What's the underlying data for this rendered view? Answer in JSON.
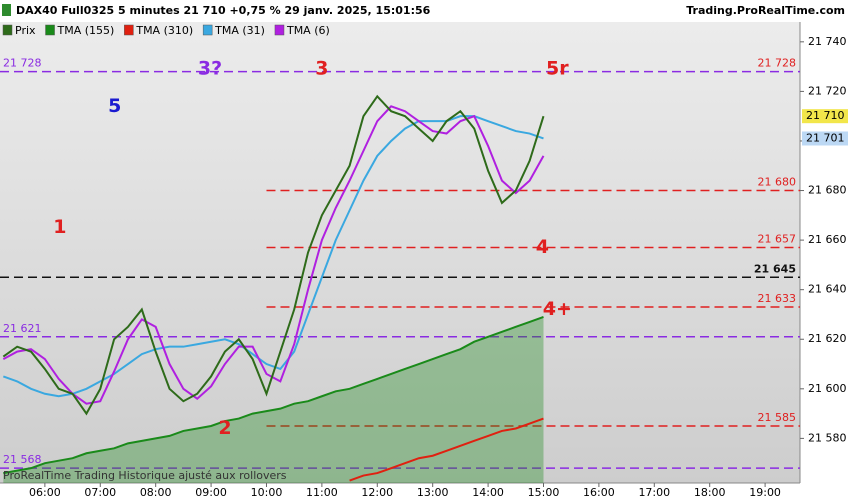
{
  "chart_data": {
    "type": "line",
    "title": "DAX40 Full0325 5 minutes 21 710 +0,75 % 29 janv. 2025, 15:01:56",
    "source": "Trading.ProRealTime.com",
    "footer": "ProRealTime Trading  Historique ajusté aux rollovers",
    "xlim": [
      5.19,
      19.63
    ],
    "ylim": [
      21562,
      21748
    ],
    "xticks": [
      {
        "value": 6,
        "label": "06:00"
      },
      {
        "value": 7,
        "label": "07:00"
      },
      {
        "value": 8,
        "label": "08:00"
      },
      {
        "value": 9,
        "label": "09:00"
      },
      {
        "value": 10,
        "label": "10:00"
      },
      {
        "value": 11,
        "label": "11:00"
      },
      {
        "value": 12,
        "label": "12:00"
      },
      {
        "value": 13,
        "label": "13:00"
      },
      {
        "value": 14,
        "label": "14:00"
      },
      {
        "value": 15,
        "label": "15:00"
      },
      {
        "value": 16,
        "label": "16:00"
      },
      {
        "value": 17,
        "label": "17:00"
      },
      {
        "value": 18,
        "label": "18:00"
      },
      {
        "value": 19,
        "label": "19:00"
      }
    ],
    "yticks": [
      {
        "value": 21740,
        "label": "21 740"
      },
      {
        "value": 21720,
        "label": "21 720"
      },
      {
        "value": 21700,
        "label": "21 700"
      },
      {
        "value": 21680,
        "label": "21 680"
      },
      {
        "value": 21660,
        "label": "21 660"
      },
      {
        "value": 21640,
        "label": "21 640"
      },
      {
        "value": 21620,
        "label": "21 620"
      },
      {
        "value": 21600,
        "label": "21 600"
      },
      {
        "value": 21580,
        "label": "21 580"
      }
    ],
    "x": [
      5.25,
      5.5,
      5.75,
      6.0,
      6.25,
      6.5,
      6.75,
      7.0,
      7.25,
      7.5,
      7.75,
      8.0,
      8.25,
      8.5,
      8.75,
      9.0,
      9.25,
      9.5,
      9.75,
      10.0,
      10.25,
      10.5,
      10.75,
      11.0,
      11.25,
      11.5,
      11.75,
      12.0,
      12.25,
      12.5,
      12.75,
      13.0,
      13.25,
      13.5,
      13.75,
      14.0,
      14.25,
      14.5,
      14.75,
      15.0
    ],
    "series": [
      {
        "name": "Prix",
        "color": "#2e6b1a",
        "values": [
          21613,
          21617,
          21615,
          21608,
          21600,
          21598,
          21590,
          21600,
          21620,
          21625,
          21632,
          21615,
          21600,
          21595,
          21598,
          21605,
          21615,
          21620,
          21612,
          21598,
          21615,
          21632,
          21655,
          21670,
          21680,
          21690,
          21710,
          21718,
          21712,
          21710,
          21705,
          21700,
          21708,
          21712,
          21705,
          21688,
          21675,
          21680,
          21692,
          21710
        ]
      },
      {
        "name": "TMA (155)",
        "color": "#1a8a1a",
        "fill": true,
        "values": [
          21566,
          21567,
          21568,
          21570,
          21571,
          21572,
          21574,
          21575,
          21576,
          21578,
          21579,
          21580,
          21581,
          21583,
          21584,
          21585,
          21587,
          21588,
          21590,
          21591,
          21592,
          21594,
          21595,
          21597,
          21599,
          21600,
          21602,
          21604,
          21606,
          21608,
          21610,
          21612,
          21614,
          21616,
          21619,
          21621,
          21623,
          21625,
          21627,
          21629
        ]
      },
      {
        "name": "TMA (310)",
        "color": "#e02010",
        "values": [
          null,
          null,
          null,
          null,
          null,
          null,
          null,
          null,
          null,
          null,
          null,
          null,
          null,
          null,
          null,
          null,
          null,
          null,
          null,
          null,
          null,
          null,
          null,
          null,
          null,
          21563,
          21565,
          21566,
          21568,
          21570,
          21572,
          21573,
          21575,
          21577,
          21579,
          21581,
          21583,
          21584,
          21586,
          21588
        ]
      },
      {
        "name": "TMA (31)",
        "color": "#3aa8e0",
        "values": [
          21605,
          21603,
          21600,
          21598,
          21597,
          21598,
          21600,
          21603,
          21606,
          21610,
          21614,
          21616,
          21617,
          21617,
          21618,
          21619,
          21620,
          21618,
          21614,
          21610,
          21608,
          21615,
          21630,
          21645,
          21660,
          21672,
          21684,
          21694,
          21700,
          21705,
          21708,
          21708,
          21708,
          21710,
          21710,
          21708,
          21706,
          21704,
          21703,
          21701
        ]
      },
      {
        "name": "TMA (6)",
        "color": "#b020e0",
        "values": [
          21612,
          21615,
          21616,
          21612,
          21604,
          21598,
          21594,
          21595,
          21607,
          21620,
          21628,
          21625,
          21610,
          21600,
          21596,
          21601,
          21610,
          21617,
          21617,
          21606,
          21603,
          21618,
          21640,
          21660,
          21673,
          21684,
          21696,
          21708,
          21714,
          21712,
          21708,
          21704,
          21703,
          21708,
          21710,
          21698,
          21684,
          21679,
          21684,
          21694
        ]
      }
    ],
    "levels": [
      {
        "value": 21728,
        "label": "21 728",
        "color": "#8a2be2",
        "label_color": "#e02020",
        "left_label": "21 728"
      },
      {
        "value": 21680,
        "label": "21 680",
        "color": "#e02020",
        "label_color": "#e02020",
        "from": 10.0
      },
      {
        "value": 21657,
        "label": "21 657",
        "color": "#e02020",
        "label_color": "#e02020",
        "from": 10.0
      },
      {
        "value": 21645,
        "label": "21 645",
        "color": "#111111",
        "label_color": "#111111"
      },
      {
        "value": 21633,
        "label": "21 633",
        "color": "#e02020",
        "label_color": "#e02020",
        "from": 10.0
      },
      {
        "value": 21621,
        "color": "#8a2be2",
        "left_label": "21 621"
      },
      {
        "value": 21585,
        "label": "21 585",
        "color": "#e02020",
        "label_color": "#e02020",
        "from": 10.0
      },
      {
        "value": 21568,
        "color": "#8a2be2",
        "left_label": "21 568"
      }
    ],
    "badges": [
      {
        "value": 21710,
        "label": "21 710",
        "color": "#f2e64a"
      },
      {
        "value": 21701,
        "label": "21 701",
        "color": "#bcd8f4"
      }
    ],
    "annotations": [
      {
        "text": "5",
        "x": 7.26,
        "y": 21714,
        "color": "#1a1ad0"
      },
      {
        "text": "1",
        "x": 6.27,
        "y": 21665,
        "color": "#e02020"
      },
      {
        "text": "3?",
        "x": 8.98,
        "y": 21729,
        "color": "#8a2be2"
      },
      {
        "text": "3",
        "x": 11.0,
        "y": 21729,
        "color": "#e02020"
      },
      {
        "text": "5r",
        "x": 15.25,
        "y": 21729,
        "color": "#e02020"
      },
      {
        "text": "4",
        "x": 14.98,
        "y": 21657,
        "color": "#e02020"
      },
      {
        "text": "4+",
        "x": 15.25,
        "y": 21632,
        "color": "#e02020"
      },
      {
        "text": "2",
        "x": 9.25,
        "y": 21584,
        "color": "#e02020"
      }
    ]
  }
}
